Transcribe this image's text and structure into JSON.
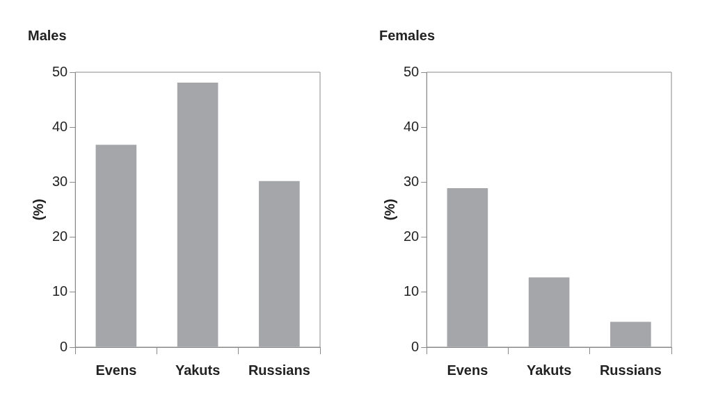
{
  "chart_data": [
    {
      "type": "bar",
      "title": "Males",
      "ylabel": "(%)",
      "categories": [
        "Evens",
        "Yakuts",
        "Russians"
      ],
      "values": [
        36.8,
        48.1,
        30.2
      ],
      "color": "#a5a6aa",
      "ylim": [
        0,
        50
      ],
      "yticks": [
        0,
        10,
        20,
        30,
        40,
        50
      ],
      "grid": false,
      "legend": false
    },
    {
      "type": "bar",
      "title": "Females",
      "ylabel": "(%)",
      "categories": [
        "Evens",
        "Yakuts",
        "Russians"
      ],
      "values": [
        28.9,
        12.7,
        4.6
      ],
      "color": "#a5a6aa",
      "ylim": [
        0,
        50
      ],
      "yticks": [
        0,
        10,
        20,
        30,
        40,
        50
      ],
      "grid": false,
      "legend": false
    }
  ]
}
